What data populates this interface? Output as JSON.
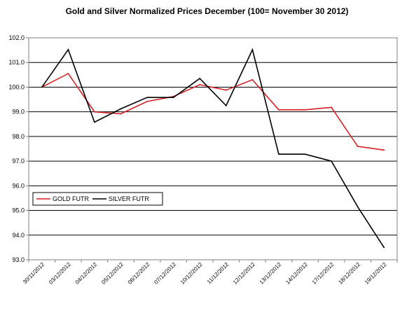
{
  "chart_data": {
    "type": "line",
    "title": "Gold and Silver Normalized Prices December (100= November 30 2012)",
    "xlabel": "",
    "ylabel": "",
    "categories": [
      "30/11/2012",
      "03/12/2012",
      "04/12/2012",
      "05/12/2012",
      "06/12/2012",
      "07/12/2012",
      "10/12/2012",
      "11/12/2012",
      "12/12/2012",
      "13/12/2012",
      "14/12/2012",
      "17/12/2012",
      "18/12/2012",
      "19/12/2012"
    ],
    "ylim": [
      93.0,
      102.0
    ],
    "yticks": [
      "93.0",
      "94.0",
      "95.0",
      "96.0",
      "97.0",
      "98.0",
      "99.0",
      "100.0",
      "101.0",
      "102.0"
    ],
    "grid": "horizontal",
    "legend_position": "left, middle",
    "series": [
      {
        "name": "GOLD  FUTR",
        "color": "#d42020",
        "values": [
          100.0,
          100.55,
          99.0,
          98.92,
          99.42,
          99.62,
          100.1,
          99.88,
          100.3,
          99.08,
          99.08,
          99.18,
          97.6,
          97.45
        ]
      },
      {
        "name": "SILVER  FUTR",
        "color": "#000000",
        "values": [
          100.0,
          101.52,
          98.58,
          99.12,
          99.58,
          99.58,
          100.35,
          99.25,
          101.52,
          97.28,
          97.28,
          97.0,
          95.15,
          93.5
        ]
      }
    ]
  }
}
